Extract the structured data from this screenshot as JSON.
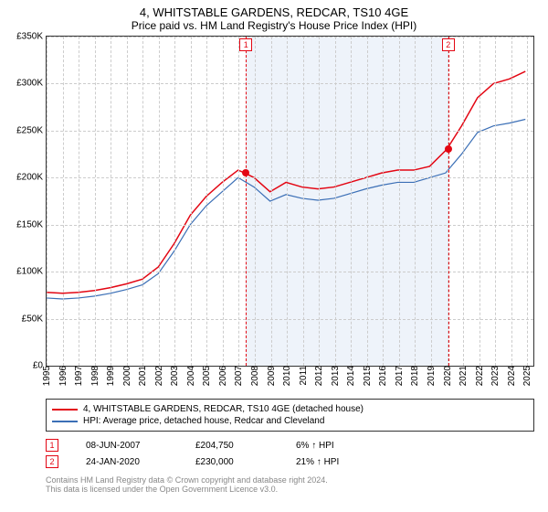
{
  "title": "4, WHITSTABLE GARDENS, REDCAR, TS10 4GE",
  "subtitle": "Price paid vs. HM Land Registry's House Price Index (HPI)",
  "chart": {
    "type": "line",
    "background_color": "#ffffff",
    "grid_color": "#cccccc",
    "shaded_region_color": "#eef3fa",
    "y": {
      "min": 0,
      "max": 350000,
      "tick_step": 50000,
      "ticks": [
        "£0",
        "£50K",
        "£100K",
        "£150K",
        "£200K",
        "£250K",
        "£300K",
        "£350K"
      ]
    },
    "x": {
      "min": 1995,
      "max": 2025.5,
      "ticks": [
        "1995",
        "1996",
        "1997",
        "1998",
        "1999",
        "2000",
        "2001",
        "2002",
        "2003",
        "2004",
        "2005",
        "2006",
        "2007",
        "2008",
        "2009",
        "2010",
        "2011",
        "2012",
        "2013",
        "2014",
        "2015",
        "2016",
        "2017",
        "2018",
        "2019",
        "2020",
        "2021",
        "2022",
        "2023",
        "2024",
        "2025"
      ]
    },
    "series": [
      {
        "label": "4, WHITSTABLE GARDENS, REDCAR, TS10 4GE (detached house)",
        "color": "#e30613",
        "width": 1.5,
        "points": [
          [
            1995,
            78000
          ],
          [
            1996,
            77000
          ],
          [
            1997,
            78000
          ],
          [
            1998,
            80000
          ],
          [
            1999,
            83000
          ],
          [
            2000,
            87000
          ],
          [
            2001,
            92000
          ],
          [
            2002,
            105000
          ],
          [
            2003,
            130000
          ],
          [
            2004,
            160000
          ],
          [
            2005,
            180000
          ],
          [
            2006,
            195000
          ],
          [
            2007,
            208000
          ],
          [
            2007.44,
            204750
          ],
          [
            2008,
            200000
          ],
          [
            2009,
            185000
          ],
          [
            2010,
            195000
          ],
          [
            2011,
            190000
          ],
          [
            2012,
            188000
          ],
          [
            2013,
            190000
          ],
          [
            2014,
            195000
          ],
          [
            2015,
            200000
          ],
          [
            2016,
            205000
          ],
          [
            2017,
            208000
          ],
          [
            2018,
            208000
          ],
          [
            2019,
            212000
          ],
          [
            2020.07,
            230000
          ],
          [
            2021,
            255000
          ],
          [
            2022,
            285000
          ],
          [
            2023,
            300000
          ],
          [
            2024,
            305000
          ],
          [
            2025,
            313000
          ]
        ]
      },
      {
        "label": "HPI: Average price, detached house, Redcar and Cleveland",
        "color": "#3b6fb6",
        "width": 1.2,
        "points": [
          [
            1995,
            72000
          ],
          [
            1996,
            71000
          ],
          [
            1997,
            72000
          ],
          [
            1998,
            74000
          ],
          [
            1999,
            77000
          ],
          [
            2000,
            81000
          ],
          [
            2001,
            86000
          ],
          [
            2002,
            98000
          ],
          [
            2003,
            122000
          ],
          [
            2004,
            150000
          ],
          [
            2005,
            170000
          ],
          [
            2006,
            185000
          ],
          [
            2007,
            200000
          ],
          [
            2008,
            190000
          ],
          [
            2009,
            175000
          ],
          [
            2010,
            182000
          ],
          [
            2011,
            178000
          ],
          [
            2012,
            176000
          ],
          [
            2013,
            178000
          ],
          [
            2014,
            183000
          ],
          [
            2015,
            188000
          ],
          [
            2016,
            192000
          ],
          [
            2017,
            195000
          ],
          [
            2018,
            195000
          ],
          [
            2019,
            200000
          ],
          [
            2020,
            205000
          ],
          [
            2021,
            225000
          ],
          [
            2022,
            248000
          ],
          [
            2023,
            255000
          ],
          [
            2024,
            258000
          ],
          [
            2025,
            262000
          ]
        ]
      }
    ],
    "markers": [
      {
        "n": "1",
        "x": 2007.44,
        "y": 204750,
        "color": "#e30613",
        "date": "08-JUN-2007",
        "price": "£204,750",
        "diff": "6% ↑ HPI"
      },
      {
        "n": "2",
        "x": 2020.07,
        "y": 230000,
        "color": "#e30613",
        "date": "24-JAN-2020",
        "price": "£230,000",
        "diff": "21% ↑ HPI"
      }
    ]
  },
  "footer": {
    "line1": "Contains HM Land Registry data © Crown copyright and database right 2024.",
    "line2": "This data is licensed under the Open Government Licence v3.0."
  }
}
